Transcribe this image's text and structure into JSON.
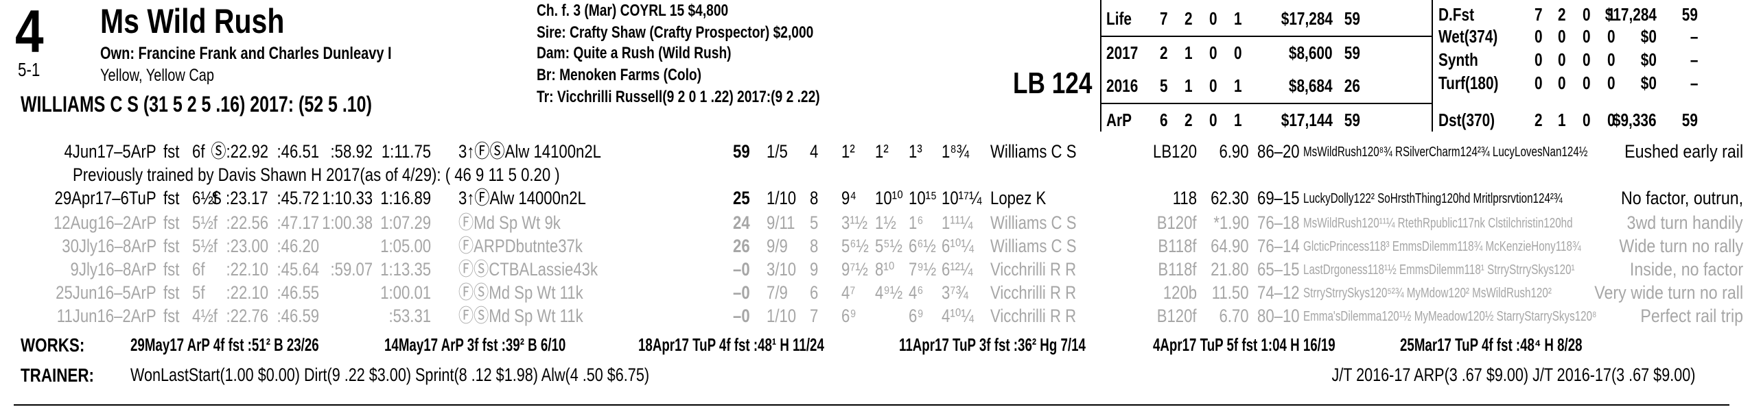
{
  "header": {
    "post": "4",
    "odds": "5-1",
    "name": "Ms Wild Rush",
    "owner": "Own: Francine Frank and Charles Dunleavy I",
    "silks": "Yellow, Yellow Cap",
    "jockey": "WILLIAMS C S (31 5 2 5 .16) 2017: (52 5 .10)",
    "breeding": [
      "Ch. f. 3 (Mar) COYRL 15 $4,800",
      "Sire: Crafty Shaw (Crafty Prospector) $2,000",
      "Dam: Quite a Rush (Wild Rush)",
      "Br:   Menoken Farms (Colo)",
      "Tr:   Vicchrilli Russell(9 2 0 1 .22) 2017:(9 2 .22)"
    ],
    "weight": "LB 124"
  },
  "stats": {
    "left": [
      [
        "Life",
        "7",
        "2",
        "0",
        "1",
        "$17,284",
        "59"
      ],
      [
        "2017",
        "2",
        "1",
        "0",
        "0",
        "$8,600",
        "59"
      ],
      [
        "2016",
        "5",
        "1",
        "0",
        "1",
        "$8,684",
        "26"
      ],
      [
        "ArP",
        "6",
        "2",
        "0",
        "1",
        "$17,144",
        "59"
      ]
    ],
    "right": [
      [
        "D.Fst",
        "7",
        "2",
        "0",
        "1",
        "$17,284",
        "59"
      ],
      [
        "Wet(374)",
        "0",
        "0",
        "0",
        "0",
        "$0",
        "–"
      ],
      [
        "Synth",
        "0",
        "0",
        "0",
        "0",
        "$0",
        "–"
      ],
      [
        "Turf(180)",
        "0",
        "0",
        "0",
        "0",
        "$0",
        "–"
      ],
      [
        "Dst(370)",
        "2",
        "1",
        "0",
        "0",
        "$9,336",
        "59"
      ]
    ]
  },
  "past_performances": [
    {
      "color": "#000000",
      "cells": [
        "4Jun17–5ArP",
        "fst",
        "6f",
        "Ⓢ:22.92",
        ":46.51",
        ":58.92",
        "1:11.75",
        "3↑ⒻⓈAlw 14100n2L",
        "59",
        "1/5",
        "4",
        "1²",
        "1²",
        "1³",
        "1⁸¾",
        "Williams C S",
        "LB120",
        "6.90",
        "86–20",
        "MsWildRush120⁸¾ RSilverCharm124²¾ LucyLovesNan124½",
        "Eushed early rail"
      ]
    },
    {
      "color": "#000000",
      "cells": [
        "29Apr17–6TuP",
        "fst",
        "6½f",
        "S :23.17",
        ":45.72",
        "1:10.33",
        "1:16.89",
        "3↑ⒻAlw 14000n2L",
        "25",
        "1/10",
        "8",
        "9⁴",
        "10¹⁰",
        "10¹⁵",
        "10¹⁷¼",
        "Lopez K",
        "118",
        "62.30",
        "69–15",
        "LuckyDolly122² SoHrsthThing120hd Mritlprsrvtion124²¾",
        "No factor, outrun,"
      ]
    },
    {
      "color": "#a6a6a6",
      "cells": [
        "12Aug16–2ArP",
        "fst",
        "5½f",
        ":22.56",
        ":47.17",
        "1:00.38",
        "1:07.29",
        "ⒻMd Sp Wt 9k",
        "24",
        "9/11",
        "5",
        "3¹½",
        "1½",
        "1⁶",
        "1¹¹¼",
        "Williams C S",
        "B120f",
        "*1.90",
        "76–18",
        "MsWildRush120¹¹¼ RtethRpublic117nk Clstilchristin120hd",
        "3wd turn handily"
      ]
    },
    {
      "color": "#a6a6a6",
      "cells": [
        "30Jly16–8ArP",
        "fst",
        "5½f",
        ":23.00",
        ":46.20",
        null,
        "1:05.00",
        "ⒻARPDbutnte37k",
        "26",
        "9/9",
        "8",
        "5⁶½",
        "5⁵½",
        "6⁶½",
        "6¹⁰¼",
        "Williams C S",
        "B118f",
        "64.90",
        "76–14",
        "GlcticPrincess118³ EmmsDilemm118¾ McKenzieHony118¾",
        "Wide turn no rally"
      ]
    },
    {
      "color": "#a6a6a6",
      "cells": [
        "9Jly16–8ArP",
        "fst",
        "6f",
        ":22.10",
        ":45.64",
        ":59.07",
        "1:13.35",
        "ⒻⓈCTBALassie43k",
        "–0",
        "3/10",
        "9",
        "9⁷½",
        "8¹⁰",
        "7⁹½",
        "6¹²¼",
        "Vicchrilli R R",
        "B118f",
        "21.80",
        "65–15",
        "LastDrgoness118¹½ EmmsDilemm118¹ StrryStrrySkys120¹",
        "Inside, no factor"
      ]
    },
    {
      "color": "#a6a6a6",
      "cells": [
        "25Jun16–5ArP",
        "fst",
        "5f",
        ":22.10",
        ":46.55",
        null,
        "1:00.01",
        "ⒻⓈMd Sp Wt 11k",
        "–0",
        "7/9",
        "6",
        "4⁷",
        "4⁹½",
        "4⁶",
        "3⁷¾",
        "Vicchrilli R R",
        "120b",
        "11.50",
        "74–12",
        "StrryStrrySkys120⁵²¾ MyMdow120² MsWildRush120²",
        "Very wide turn no rall"
      ]
    },
    {
      "color": "#a6a6a6",
      "cells": [
        "11Jun16–2ArP",
        "fst",
        "4½f",
        ":22.76",
        ":46.59",
        null,
        ":53.31",
        "ⒻⓈMd Sp Wt 11k",
        "–0",
        "1/10",
        "7",
        "6⁹",
        null,
        "6⁹",
        "4¹⁰¼",
        "Vicchrilli R R",
        "B120f",
        "6.70",
        "80–10",
        "Emma'sDilemma120¹½ MyMeadow120½ StarryStarrySkys120⁸",
        "Perfect rail trip"
      ]
    }
  ],
  "note": "Previously trained by Davis Shawn H 2017(as of 4/29): ( 46 9 11 5 0.20 )",
  "works": {
    "label": "WORKS:",
    "items": [
      "29May17 ArP 4f fst :51² B 23/26",
      "14May17 ArP 3f fst :39² B 6/10",
      "18Apr17 TuP 4f fst :48¹ H 11/24",
      "11Apr17 TuP 3f fst :36² Hg 7/14",
      "4Apr17 TuP 5f fst 1:04 H 16/19",
      "25Mar17 TuP 4f fst :48⁴ H 8/28"
    ]
  },
  "trainer": {
    "label": "TRAINER:",
    "stats": "WonLastStart(1.00 $0.00) Dirt(9 .22 $3.00) Sprint(8 .12 $1.98) Alw(4 .50 $6.75)",
    "jt": "J/T 2016-17 ARP(3 .67 $9.00)  J/T 2016-17(3 .67 $9.00)"
  }
}
